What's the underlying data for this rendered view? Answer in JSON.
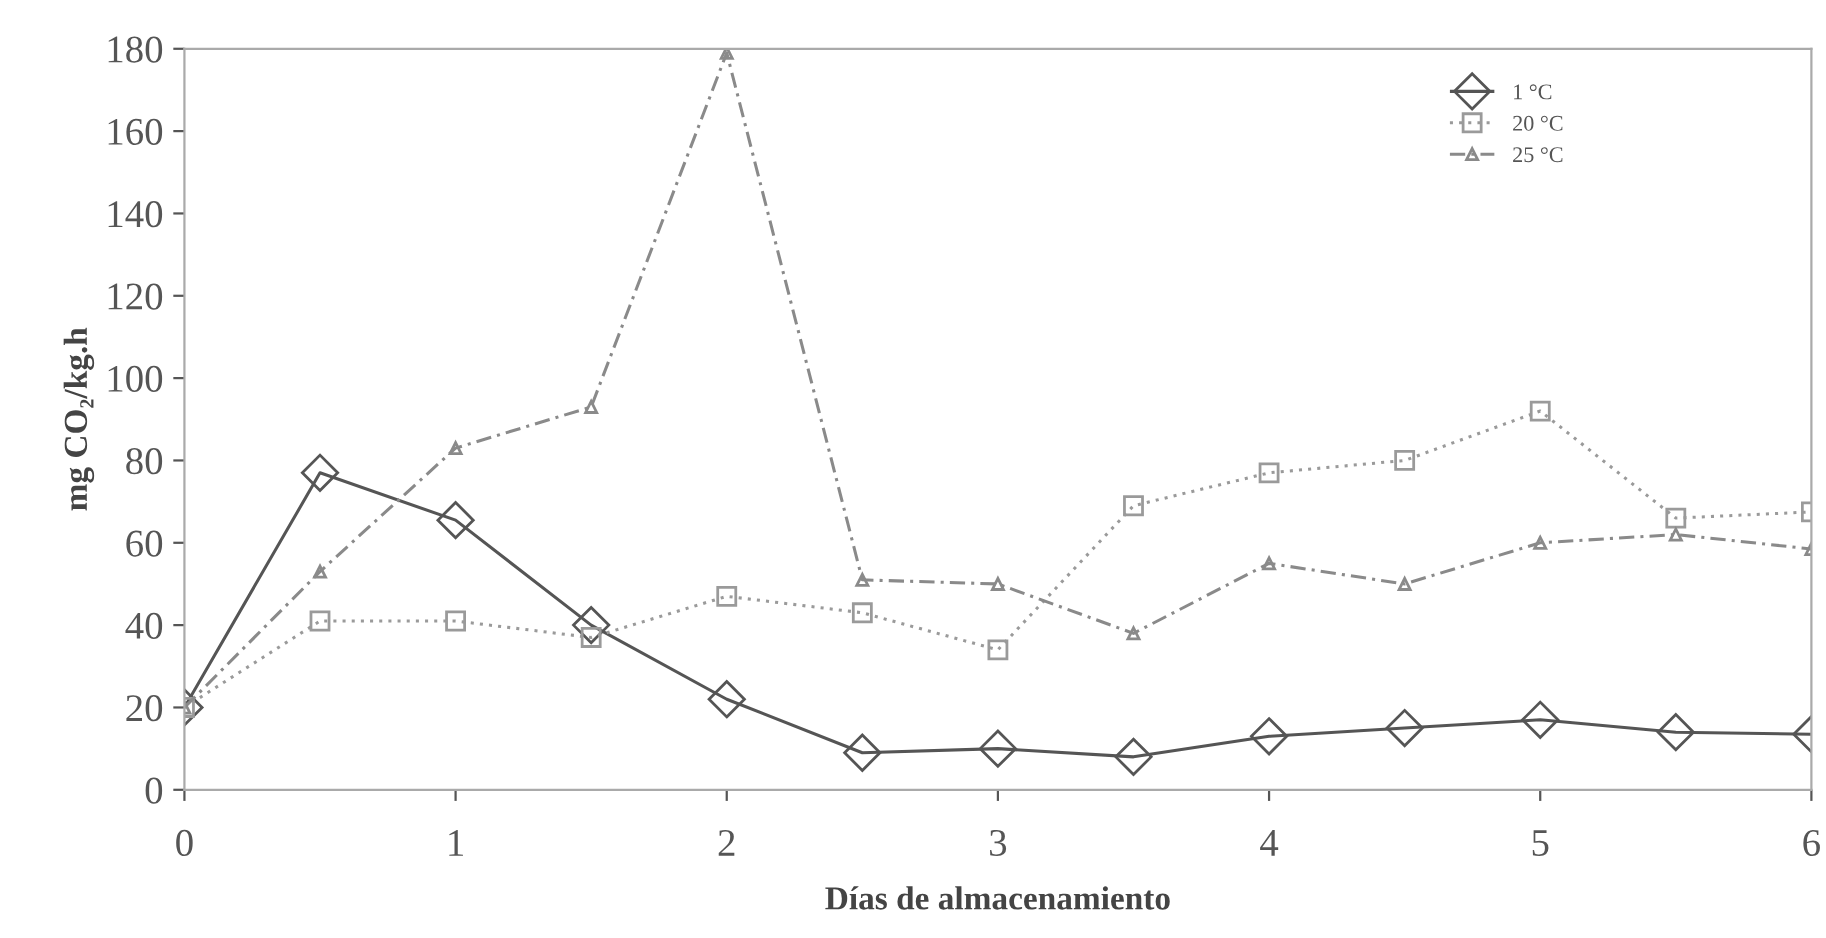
{
  "chart_data": {
    "type": "line",
    "xlabel": "Días de almacenamiento",
    "ylabel": "mg CO₂/kg.h",
    "x": [
      0,
      0.5,
      1,
      1.5,
      2,
      2.5,
      3,
      3.5,
      4,
      4.5,
      5,
      5.5,
      6
    ],
    "series": [
      {
        "name": "1 °C",
        "color": "#555555",
        "marker": "diamond",
        "line_style": "solid",
        "values": [
          20,
          77,
          65.5,
          40,
          22,
          9,
          10,
          8,
          13,
          15,
          17,
          14,
          13.5
        ]
      },
      {
        "name": "20 °C",
        "color": "#9a9a9a",
        "marker": "square",
        "line_style": "dotted",
        "values": [
          20,
          41,
          41,
          37,
          47,
          43,
          34,
          69,
          77,
          80,
          92,
          66,
          67.5
        ]
      },
      {
        "name": "25 °C",
        "color": "#8a8a8a",
        "marker": "triangle",
        "line_style": "dashed",
        "values": [
          20,
          53,
          83,
          93,
          179,
          51,
          50,
          38,
          55,
          50,
          60,
          62,
          58.5
        ]
      }
    ],
    "xlim": [
      0,
      6
    ],
    "xticks": [
      0,
      1,
      2,
      3,
      4,
      5,
      6
    ],
    "ylim": [
      0,
      180
    ],
    "yticks": [
      0,
      20,
      40,
      60,
      80,
      100,
      120,
      140,
      160,
      180
    ],
    "grid": false,
    "legend": "top right"
  }
}
